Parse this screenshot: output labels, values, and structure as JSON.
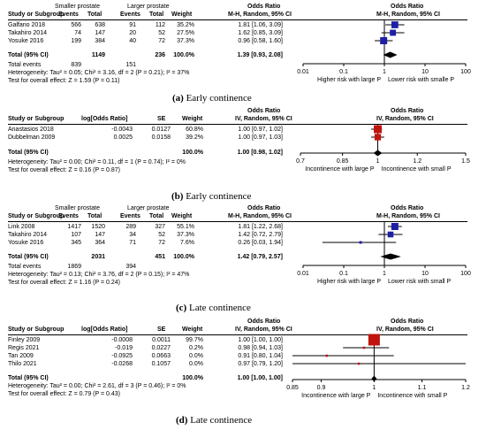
{
  "panels": [
    {
      "letter": "(a)",
      "caption": "Early continence",
      "headers": {
        "group1": "Smaller prostate",
        "group2": "Larger prostate",
        "study": "Study or Subgroup",
        "events1": "Events",
        "total1": "Total",
        "events2": "Events",
        "total2": "Total",
        "weight": "Weight",
        "or_title": "Odds Ratio",
        "or_method": "M-H, Random, 95% CI",
        "plot_title": "Odds Ratio",
        "plot_method": "M-H, Random, 95% CI"
      },
      "studies": [
        {
          "name": "Galfano 2018",
          "events1": "566",
          "total1": "638",
          "events2": "91",
          "total2": "112",
          "weight": "35.2%",
          "or_text": "1.81 [1.06, 3.09]"
        },
        {
          "name": "Takahiro 2014",
          "events1": "74",
          "total1": "147",
          "events2": "20",
          "total2": "52",
          "weight": "27.5%",
          "or_text": "1.62 [0.85, 3.09]"
        },
        {
          "name": "Yosuke 2016",
          "events1": "199",
          "total1": "384",
          "events2": "40",
          "total2": "72",
          "weight": "37.3%",
          "or_text": "0.96 [0.58, 1.60]"
        }
      ],
      "total": {
        "label": "Total (95% CI)",
        "total1": "1149",
        "total2": "236",
        "weight": "100.0%",
        "or_text": "1.39 [0.93, 2.08]"
      },
      "total_events": {
        "label": "Total events",
        "events1": "839",
        "events2": "151"
      },
      "heterogeneity": "Heterogeneity: Tau² = 0.05; Chi² = 3.16, df = 2 (P = 0.21); I² = 37%",
      "overall": "Test for overall effect: Z = 1.59 (P = 0.11)",
      "axis_ticks": [
        "0.01",
        "0.1",
        "1",
        "10",
        "100"
      ],
      "axis_left_label": "Higher risk with large P",
      "axis_right_label": "Lower risk with smalle P"
    },
    {
      "letter": "(b)",
      "caption": "Early continence",
      "headers": {
        "study": "Study or Subgroup",
        "col1": "log[Odds Ratio]",
        "col2": "SE",
        "weight": "Weight",
        "or_title": "Odds Ratio",
        "or_method": "IV, Random, 95% CI",
        "plot_title": "Odds Ratio",
        "plot_method": "IV, Random, 95% CI"
      },
      "studies": [
        {
          "name": "Anastasios 2018",
          "col1": "-0.0043",
          "col2": "0.0127",
          "weight": "60.8%",
          "or_text": "1.00 [0.97, 1.02]"
        },
        {
          "name": "Dubbelman 2009",
          "col1": "0.0025",
          "col2": "0.0158",
          "weight": "39.2%",
          "or_text": "1.00 [0.97, 1.03]"
        }
      ],
      "total": {
        "label": "Total (95% CI)",
        "weight": "100.0%",
        "or_text": "1.00 [0.98, 1.02]"
      },
      "heterogeneity": "Heterogeneity: Tau² = 0.00; Chi² = 0.11, df = 1 (P = 0.74); I² = 0%",
      "overall": "Test for overall effect: Z = 0.16 (P = 0.87)",
      "axis_ticks": [
        "0.7",
        "0.85",
        "1",
        "1.2",
        "1.5"
      ],
      "axis_left_label": "Incontinence with large P",
      "axis_right_label": "Incontinence with small P"
    },
    {
      "letter": "(c)",
      "caption": "Late continence",
      "headers": {
        "group1": "Smaller prostate",
        "group2": "Larger prostate",
        "study": "Study or Subgroup",
        "events1": "Events",
        "total1": "Total",
        "events2": "Events",
        "total2": "Total",
        "weight": "Weight",
        "or_title": "Odds Ratio",
        "or_method": "M-H, Random, 95% CI",
        "plot_title": "Odds Ratio",
        "plot_method": "M-H, Random, 95% CI"
      },
      "studies": [
        {
          "name": "Link 2008",
          "events1": "1417",
          "total1": "1520",
          "events2": "289",
          "total2": "327",
          "weight": "55.1%",
          "or_text": "1.81 [1.22, 2.68]"
        },
        {
          "name": "Takahiro 2014",
          "events1": "107",
          "total1": "147",
          "events2": "34",
          "total2": "52",
          "weight": "37.3%",
          "or_text": "1.42 [0.72, 2.79]"
        },
        {
          "name": "Yosuke 2016",
          "events1": "345",
          "total1": "364",
          "events2": "71",
          "total2": "72",
          "weight": "7.6%",
          "or_text": "0.26 [0.03, 1.94]"
        }
      ],
      "total": {
        "label": "Total (95% CI)",
        "total1": "2031",
        "total2": "451",
        "weight": "100.0%",
        "or_text": "1.42 [0.79, 2.57]"
      },
      "total_events": {
        "label": "Total events",
        "events1": "1869",
        "events2": "394"
      },
      "heterogeneity": "Heterogeneity: Tau² = 0.13; Chi² = 3.76, df = 2 (P = 0.15); I² = 47%",
      "overall": "Test for overall effect: Z = 1.16 (P = 0.24)",
      "axis_ticks": [
        "0.01",
        "0.1",
        "1",
        "10",
        "100"
      ],
      "axis_left_label": "Higher risk with large P",
      "axis_right_label": "Lower risk with small P"
    },
    {
      "letter": "(d)",
      "caption": "Late continence",
      "headers": {
        "study": "Study or Subgroup",
        "col1": "log[Odds Ratio]",
        "col2": "SE",
        "weight": "Weight",
        "or_title": "Odds Ratio",
        "or_method": "IV, Random, 95% CI",
        "plot_title": "Odds Ratio",
        "plot_method": "IV, Random, 95% CI"
      },
      "studies": [
        {
          "name": "Finley 2009",
          "col1": "-0.0008",
          "col2": "0.0011",
          "weight": "99.7%",
          "or_text": "1.00 [1.00, 1.00]"
        },
        {
          "name": "Regis 2021",
          "col1": "-0.019",
          "col2": "0.0227",
          "weight": "0.2%",
          "or_text": "0.98 [0.94, 1.03]"
        },
        {
          "name": "Tan 2009",
          "col1": "-0.0925",
          "col2": "0.0663",
          "weight": "0.0%",
          "or_text": "0.91 [0.80, 1.04]"
        },
        {
          "name": "Thilo 2021",
          "col1": "-0.0268",
          "col2": "0.1057",
          "weight": "0.0%",
          "or_text": "0.97 [0.79, 1.20]"
        }
      ],
      "total": {
        "label": "Total (95% CI)",
        "weight": "100.0%",
        "or_text": "1.00 [1.00, 1.00]"
      },
      "heterogeneity": "Heterogeneity: Tau² = 0.00; Chi² = 2.61, df = 3 (P = 0.46); I² = 0%",
      "overall": "Test for overall effect: Z = 0.79 (P = 0.43)",
      "axis_ticks": [
        "0.85",
        "0.9",
        "1",
        "1.1",
        "1.2"
      ],
      "axis_left_label": "Incontinence with large P",
      "axis_right_label": "Incontinence with small P"
    }
  ],
  "chart_data": [
    {
      "type": "forest",
      "scale": "log",
      "xlim": [
        0.01,
        100
      ],
      "x_ticks": [
        0.01,
        0.1,
        1,
        10,
        100
      ],
      "marker_color": "#1f1fa6",
      "categories": [
        "Galfano 2018",
        "Takahiro 2014",
        "Yosuke 2016"
      ],
      "series": [
        {
          "or": [
            1.81,
            1.62,
            0.96
          ],
          "lower": [
            1.06,
            0.85,
            0.58
          ],
          "upper": [
            3.09,
            3.09,
            1.6
          ],
          "weight": [
            35.2,
            27.5,
            37.3
          ]
        }
      ],
      "pooled": {
        "or": 1.39,
        "lower": 0.93,
        "upper": 2.08
      }
    },
    {
      "type": "forest",
      "scale": "log",
      "xlim": [
        0.7,
        1.5
      ],
      "x_ticks": [
        0.7,
        0.85,
        1,
        1.2,
        1.5
      ],
      "marker_color": "#c0140e",
      "categories": [
        "Anastasios 2018",
        "Dubbelman 2009"
      ],
      "series": [
        {
          "or": [
            1.0,
            1.0
          ],
          "lower": [
            0.97,
            0.97
          ],
          "upper": [
            1.02,
            1.03
          ],
          "weight": [
            60.8,
            39.2
          ]
        }
      ],
      "pooled": {
        "or": 1.0,
        "lower": 0.98,
        "upper": 1.02
      }
    },
    {
      "type": "forest",
      "scale": "log",
      "xlim": [
        0.01,
        100
      ],
      "x_ticks": [
        0.01,
        0.1,
        1,
        10,
        100
      ],
      "marker_color": "#1f1fa6",
      "categories": [
        "Link 2008",
        "Takahiro 2014",
        "Yosuke 2016"
      ],
      "series": [
        {
          "or": [
            1.81,
            1.42,
            0.26
          ],
          "lower": [
            1.22,
            0.72,
            0.03
          ],
          "upper": [
            2.68,
            2.79,
            1.94
          ],
          "weight": [
            55.1,
            37.3,
            7.6
          ]
        }
      ],
      "pooled": {
        "or": 1.42,
        "lower": 0.79,
        "upper": 2.57
      }
    },
    {
      "type": "forest",
      "scale": "log",
      "xlim": [
        0.85,
        1.2
      ],
      "x_ticks": [
        0.85,
        0.9,
        1,
        1.1,
        1.2
      ],
      "marker_color": "#c0140e",
      "categories": [
        "Finley 2009",
        "Regis 2021",
        "Tan 2009",
        "Thilo 2021"
      ],
      "series": [
        {
          "or": [
            1.0,
            0.98,
            0.91,
            0.97
          ],
          "lower": [
            1.0,
            0.94,
            0.8,
            0.79
          ],
          "upper": [
            1.0,
            1.03,
            1.04,
            1.2
          ],
          "weight": [
            99.7,
            0.2,
            0.0,
            0.0
          ]
        }
      ],
      "pooled": {
        "or": 1.0,
        "lower": 1.0,
        "upper": 1.0
      }
    }
  ]
}
